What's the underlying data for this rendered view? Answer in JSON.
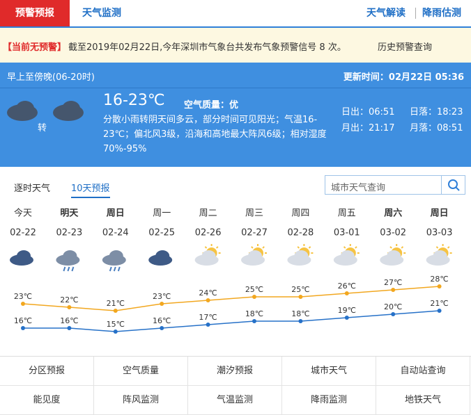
{
  "nav": {
    "tabs": [
      "预警预报",
      "天气监测"
    ],
    "links": [
      "天气解读",
      "降雨估测"
    ]
  },
  "alert": {
    "status": "【当前无预警】",
    "text": "截至2019年02月22日,今年深圳市气象台共发布气象预警信号 8 次。",
    "link": "历史预警查询"
  },
  "today": {
    "period": "早上至傍晚(06-20时)",
    "updated": "更新时间：02月22日 05:36",
    "transition": "转",
    "temperature": "16-23℃",
    "air_quality": "空气质量：优",
    "description": "分散小雨转阴天间多云，部分时间可见阳光；气温16-23℃；偏北风3级，沿海和高地最大阵风6级；相对湿度70%-95%",
    "sunrise": "日出：06:51",
    "sunset": "日落：18:23",
    "moonrise": "月出：21:17",
    "moonset": "月落：08:51"
  },
  "forecast": {
    "tabs": [
      "逐时天气",
      "10天预报"
    ],
    "search_placeholder": "城市天气查询",
    "weekdays": [
      "今天",
      "明天",
      "周日",
      "周一",
      "周二",
      "周三",
      "周四",
      "周五",
      "周六",
      "周日"
    ],
    "dates": [
      "02-22",
      "02-23",
      "02-24",
      "02-25",
      "02-26",
      "02-27",
      "02-28",
      "03-01",
      "03-02",
      "03-03"
    ],
    "highs": [
      23,
      22,
      21,
      23,
      24,
      25,
      25,
      26,
      27,
      28
    ],
    "high_labels": [
      "23℃",
      "22℃",
      "21℃",
      "23℃",
      "24℃",
      "25℃",
      "25℃",
      "26℃",
      "27℃",
      "28℃"
    ],
    "lows": [
      16,
      16,
      15,
      16,
      17,
      18,
      18,
      19,
      20,
      21
    ],
    "low_labels": [
      "16℃",
      "16℃",
      "15℃",
      "16℃",
      "17℃",
      "18℃",
      "18℃",
      "19℃",
      "20℃",
      "21℃"
    ]
  },
  "menu": [
    "分区预报",
    "空气质量",
    "潮汐预报",
    "城市天气",
    "自动站查询",
    "能见度",
    "阵风监测",
    "气温监测",
    "降雨监测",
    "地铁天气"
  ]
}
